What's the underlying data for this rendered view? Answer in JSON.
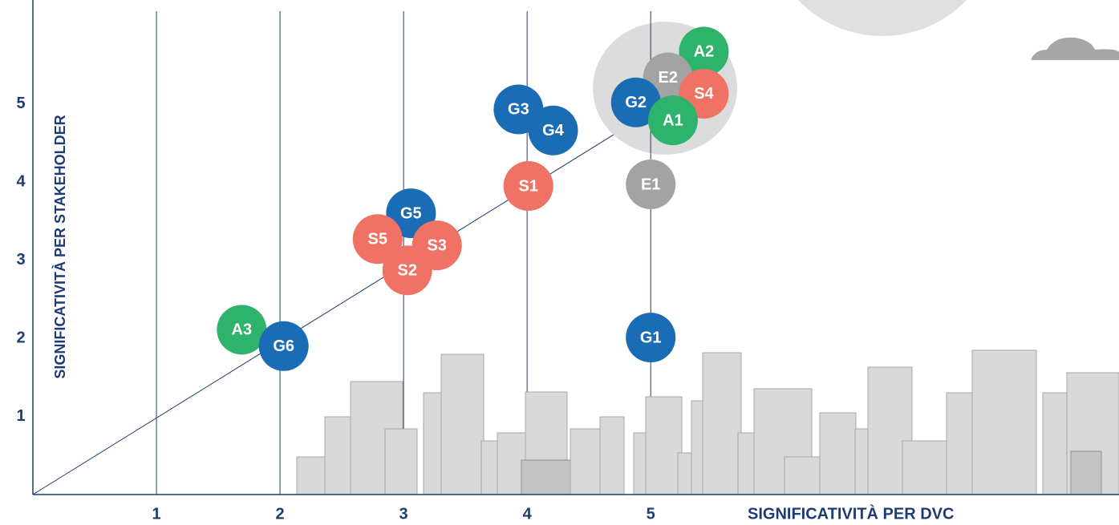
{
  "chart_data": {
    "type": "scatter",
    "xlabel": "SIGNIFICATIVITÀ PER DVC",
    "ylabel": "SIGNIFICATIVITÀ PER STAKEHOLDER",
    "labels": [
      "A2",
      "E2",
      "S4",
      "G2",
      "A1",
      "G3",
      "G4",
      "S1",
      "E1",
      "G5",
      "S5",
      "S3",
      "S2",
      "G1",
      "A3",
      "G6"
    ],
    "x": [
      5.43,
      5.14,
      5.43,
      4.88,
      5.18,
      3.93,
      4.21,
      4.01,
      5.0,
      3.06,
      2.79,
      3.27,
      3.03,
      5.0,
      1.69,
      2.03
    ],
    "values": [
      5.67,
      5.34,
      5.13,
      5.02,
      4.79,
      4.93,
      4.66,
      3.95,
      3.97,
      3.6,
      3.27,
      3.19,
      2.87,
      2.01,
      2.11,
      1.9
    ],
    "colors": [
      "#2eb36c",
      "#a3a3a3",
      "#f07264",
      "#1a6db4",
      "#2eb36c",
      "#1a6db4",
      "#1a6db4",
      "#f07264",
      "#a3a3a3",
      "#1a6db4",
      "#f07264",
      "#f07264",
      "#f07264",
      "#1a6db4",
      "#2eb36c",
      "#1a6db4"
    ],
    "xlim": [
      0,
      8.79
    ],
    "ylim": [
      0,
      6.33
    ],
    "xticks": [
      1,
      2,
      3,
      4,
      5
    ],
    "yticks": [
      1,
      2,
      3,
      4,
      5
    ],
    "grid": true
  }
}
